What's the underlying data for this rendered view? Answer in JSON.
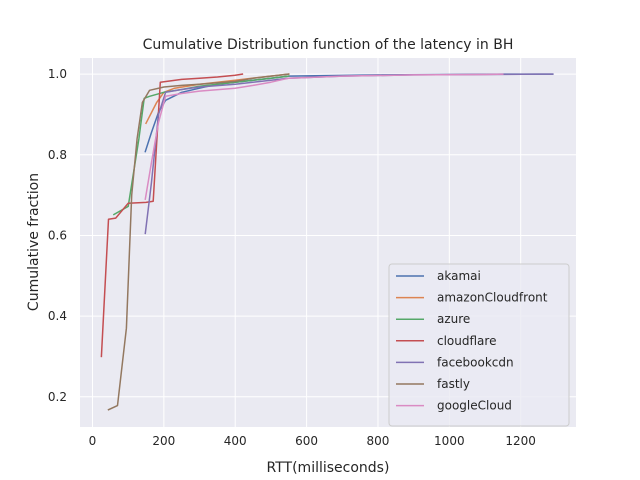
{
  "chart_data": {
    "type": "line",
    "title": "Cumulative Distribution function of the latency in BH",
    "xlabel": "RTT(milliseconds)",
    "ylabel": "Cumulative fraction",
    "xlim": [
      -35,
      1355
    ],
    "ylim": [
      0.125,
      1.04
    ],
    "xticks": [
      0,
      200,
      400,
      600,
      800,
      1000,
      1200
    ],
    "yticks": [
      0.2,
      0.4,
      0.6,
      0.8,
      1.0
    ],
    "xtick_labels": [
      "0",
      "200",
      "400",
      "600",
      "800",
      "1000",
      "1200"
    ],
    "ytick_labels": [
      "0.2",
      "0.4",
      "0.6",
      "0.8",
      "1.0"
    ],
    "grid": true,
    "legend_position": "lower-right",
    "background_color": "#eaeaf2",
    "grid_color": "#ffffff",
    "series": [
      {
        "name": "akamai",
        "color": "#4c72b0",
        "x": [
          148,
          165,
          185,
          205,
          250,
          300,
          350,
          400,
          450,
          500,
          550,
          800,
          1000,
          1150,
          1250,
          1290
        ],
        "y": [
          0.808,
          0.855,
          0.905,
          0.935,
          0.955,
          0.965,
          0.975,
          0.98,
          0.985,
          0.99,
          0.995,
          0.998,
          0.999,
          1.0,
          1.0,
          1.0
        ]
      },
      {
        "name": "amazonCloudfront",
        "color": "#dd8452",
        "x": [
          150,
          180,
          200,
          230,
          300,
          400,
          500,
          550
        ],
        "y": [
          0.878,
          0.93,
          0.955,
          0.965,
          0.975,
          0.985,
          0.995,
          1.0
        ]
      },
      {
        "name": "azure",
        "color": "#55a868",
        "x": [
          60,
          100,
          130,
          145,
          160,
          200,
          250,
          300,
          350,
          400,
          450,
          500,
          550
        ],
        "y": [
          0.652,
          0.672,
          0.84,
          0.94,
          0.945,
          0.955,
          0.962,
          0.97,
          0.975,
          0.98,
          0.985,
          0.99,
          0.995
        ]
      },
      {
        "name": "cloudflare",
        "color": "#c44e52",
        "x": [
          25,
          45,
          65,
          100,
          150,
          170,
          190,
          250,
          300,
          350,
          400,
          420
        ],
        "y": [
          0.3,
          0.64,
          0.643,
          0.68,
          0.682,
          0.685,
          0.98,
          0.987,
          0.99,
          0.993,
          0.997,
          1.0
        ]
      },
      {
        "name": "facebookcdn",
        "color": "#8172b3",
        "x": [
          148,
          165,
          185,
          205,
          250,
          300,
          400,
          500,
          550,
          700,
          900,
          1100,
          1250,
          1290
        ],
        "y": [
          0.605,
          0.73,
          0.9,
          0.955,
          0.962,
          0.968,
          0.975,
          0.985,
          0.99,
          0.995,
          0.998,
          0.999,
          1.0,
          1.0
        ]
      },
      {
        "name": "fastly",
        "color": "#937860",
        "x": [
          45,
          70,
          95,
          110,
          125,
          140,
          160,
          200,
          250,
          300,
          400,
          450,
          500,
          550
        ],
        "y": [
          0.168,
          0.178,
          0.37,
          0.7,
          0.84,
          0.93,
          0.96,
          0.968,
          0.972,
          0.975,
          0.982,
          0.99,
          0.995,
          1.0
        ]
      },
      {
        "name": "googleCloud",
        "color": "#da8bc3",
        "x": [
          148,
          165,
          185,
          205,
          250,
          300,
          400,
          450,
          500,
          550,
          700,
          900,
          1100,
          1150
        ],
        "y": [
          0.69,
          0.78,
          0.88,
          0.945,
          0.952,
          0.958,
          0.965,
          0.972,
          0.98,
          0.99,
          0.995,
          0.998,
          0.999,
          1.0
        ]
      }
    ]
  }
}
